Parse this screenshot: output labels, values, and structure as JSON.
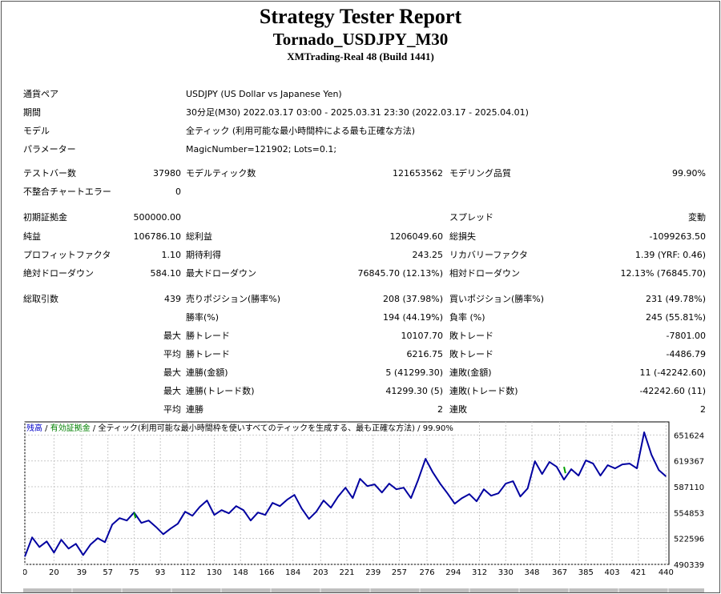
{
  "header": {
    "title": "Strategy Tester Report",
    "subtitle": "Tornado_USDJPY_M30",
    "build": "XMTrading-Real 48 (Build 1441)"
  },
  "info": {
    "symbol_label": "通貨ペア",
    "symbol_value": "USDJPY (US Dollar vs Japanese Yen)",
    "period_label": "期間",
    "period_value": "30分足(M30) 2022.03.17 03:00 - 2025.03.31 23:30 (2022.03.17 - 2025.04.01)",
    "model_label": "モデル",
    "model_value": "全ティック (利用可能な最小時間枠による最も正確な方法)",
    "params_label": "パラメーター",
    "params_value": "MagicNumber=121902; Lots=0.1;"
  },
  "test": {
    "bars_label": "テストバー数",
    "bars_value": "37980",
    "ticks_label": "モデルティック数",
    "ticks_value": "121653562",
    "quality_label": "モデリング品質",
    "quality_value": "99.90%",
    "mismatch_label": "不整合チャートエラー",
    "mismatch_value": "0"
  },
  "results": {
    "deposit_label": "初期証拠金",
    "deposit_value": "500000.00",
    "spread_label": "スプレッド",
    "spread_value": "変動",
    "net_label": "純益",
    "net_value": "106786.10",
    "gross_profit_label": "総利益",
    "gross_profit_value": "1206049.60",
    "gross_loss_label": "総損失",
    "gross_loss_value": "-1099263.50",
    "pf_label": "プロフィットファクタ",
    "pf_value": "1.10",
    "expected_label": "期待利得",
    "expected_value": "243.25",
    "recovery_label": "リカバリーファクタ",
    "recovery_value": "1.39 (YRF: 0.46)",
    "abs_dd_label": "絶対ドローダウン",
    "abs_dd_value": "584.10",
    "max_dd_label": "最大ドローダウン",
    "max_dd_value": "76845.70 (12.13%)",
    "rel_dd_label": "相対ドローダウン",
    "rel_dd_value": "12.13% (76845.70)"
  },
  "trades": {
    "total_label": "総取引数",
    "total_value": "439",
    "short_label": "売りポジション(勝率%)",
    "short_value": "208 (37.98%)",
    "long_label": "買いポジション(勝率%)",
    "long_value": "231 (49.78%)",
    "win_label": "勝率(%)",
    "win_value": "194 (44.19%)",
    "loss_label": "負率 (%)",
    "loss_value": "245 (55.81%)",
    "max_label": "最大",
    "avg_label": "平均",
    "largest_win_label": "勝トレード",
    "largest_win_value": "10107.70",
    "largest_loss_label": "敗トレード",
    "largest_loss_value": "-7801.00",
    "avg_win_label": "勝トレード",
    "avg_win_value": "6216.75",
    "avg_loss_label": "敗トレード",
    "avg_loss_value": "-4486.79",
    "max_cons_win_label": "連勝(金額)",
    "max_cons_win_value": "5 (41299.30)",
    "max_cons_loss_label": "連敗(金額)",
    "max_cons_loss_value": "11 (-42242.60)",
    "max_cons_profit_label": "連勝(トレード数)",
    "max_cons_profit_value": "41299.30 (5)",
    "max_cons_lossamt_label": "連敗(トレード数)",
    "max_cons_lossamt_value": "-42242.60 (11)",
    "avg_cons_win_label": "連勝",
    "avg_cons_win_value": "2",
    "avg_cons_loss_label": "連敗",
    "avg_cons_loss_value": "2"
  },
  "chart_legend": {
    "balance": "残高",
    "sep1": " / ",
    "equity": "有効証拠金",
    "sep2": " / ",
    "model": "全ティック(利用可能な最小時間枠を使いすべてのティックを生成する、最も正確な方法)",
    "sep3": " / ",
    "quality": "99.90%"
  },
  "colors": {
    "balance": "#0000a0",
    "equity": "#00a000",
    "legend_balance": "#0000c8",
    "legend_equity": "#008000",
    "grid": "#c8c8c8"
  },
  "chart_data": {
    "type": "line",
    "title": "",
    "xlabel": "",
    "ylabel": "",
    "xlim": [
      0,
      442
    ],
    "ylim": [
      490339,
      668000
    ],
    "x_ticks": [
      "0",
      "20",
      "39",
      "57",
      "75",
      "93",
      "112",
      "130",
      "148",
      "166",
      "184",
      "203",
      "221",
      "239",
      "257",
      "276",
      "294",
      "312",
      "330",
      "348",
      "367",
      "385",
      "403",
      "421",
      "440"
    ],
    "x_tick_values": [
      0,
      20,
      39,
      57,
      75,
      93,
      112,
      130,
      148,
      166,
      184,
      203,
      221,
      239,
      257,
      276,
      294,
      312,
      330,
      348,
      367,
      385,
      403,
      421,
      440
    ],
    "y_ticks": [
      "490339",
      "522596",
      "554853",
      "587110",
      "619367",
      "651624"
    ],
    "y_tick_values": [
      490339,
      522596,
      554853,
      587110,
      619367,
      651624
    ],
    "grid": true,
    "series": [
      {
        "name": "残高",
        "x": [
          0,
          5,
          10,
          15,
          20,
          25,
          30,
          35,
          40,
          45,
          50,
          55,
          60,
          65,
          70,
          75,
          80,
          85,
          90,
          95,
          100,
          105,
          110,
          115,
          120,
          125,
          130,
          135,
          140,
          145,
          150,
          155,
          160,
          165,
          170,
          175,
          180,
          185,
          190,
          195,
          200,
          205,
          210,
          215,
          220,
          225,
          230,
          235,
          240,
          245,
          250,
          255,
          260,
          265,
          270,
          275,
          280,
          285,
          290,
          295,
          300,
          305,
          310,
          315,
          320,
          325,
          330,
          335,
          340,
          345,
          350,
          355,
          360,
          365,
          370,
          375,
          380,
          385,
          390,
          395,
          400,
          405,
          410,
          415,
          420,
          425,
          430,
          435,
          440
        ],
        "values": [
          500000,
          524000,
          512000,
          519000,
          505000,
          521000,
          510000,
          516000,
          502000,
          515000,
          523000,
          518000,
          540000,
          548000,
          545000,
          555000,
          542000,
          545000,
          537000,
          528000,
          535000,
          541000,
          556000,
          551000,
          562000,
          570000,
          552000,
          558000,
          554000,
          563000,
          558000,
          545000,
          555000,
          552000,
          567000,
          563000,
          571000,
          577000,
          560000,
          547000,
          556000,
          570000,
          561000,
          575000,
          586000,
          573000,
          597000,
          588000,
          590000,
          580000,
          591000,
          584000,
          586000,
          573000,
          596000,
          622000,
          605000,
          591000,
          579000,
          566000,
          573000,
          578000,
          569000,
          584000,
          576000,
          579000,
          591000,
          594000,
          575000,
          585000,
          619000,
          603000,
          618000,
          612000,
          596000,
          609000,
          601000,
          620000,
          616000,
          601000,
          614000,
          610000,
          615000,
          616000,
          610000,
          655000,
          627000,
          608000,
          600000
        ]
      }
    ]
  }
}
